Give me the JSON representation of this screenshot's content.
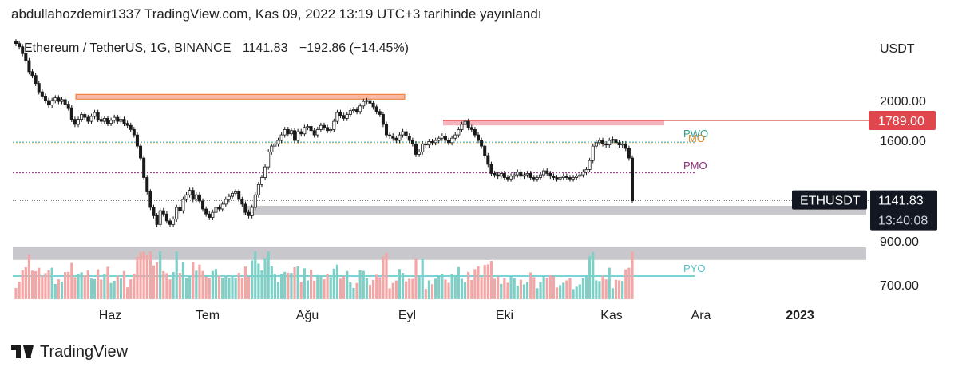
{
  "header": {
    "publish_line": "abdullahozdemir1337 TradingView.com, Kas 09, 2022 13:19 UTC+3 tarihinde yayınlandı"
  },
  "legend": {
    "symbol": "Ethereum / TetherUS, 1G, BINANCE",
    "last": "1141.83",
    "change": "−192.86 (−14.45%)"
  },
  "footer": {
    "brand": "TradingView"
  },
  "colors": {
    "up": "#1a1a1a",
    "down": "#1a1a1a",
    "vol_up": "#7ecfc6",
    "vol_down": "#f3a6a6",
    "zone_gray": "#c8c8cc",
    "zone_orange": "#f7b8a4",
    "zone_pink": "#f7b3bd",
    "red_line": "#e0474c",
    "pmo": "#8e2b7e",
    "pwo": "#2e9e86",
    "pyo": "#4fc5c8",
    "mo": "#e08a2a"
  },
  "chart_data": {
    "type": "candlestick",
    "symbol": "Ethereum / TetherUS",
    "interval": "1G",
    "exchange": "BINANCE",
    "currency": "USDT",
    "y_axis": {
      "label": "USDT",
      "ticks": [
        700,
        900,
        1600,
        2000
      ],
      "range": [
        650,
        2750
      ],
      "scale": "log"
    },
    "x_axis": {
      "ticks": [
        "Haz",
        "Tem",
        "Ağu",
        "Eyl",
        "Eki",
        "Kas",
        "Ara",
        "2023"
      ],
      "bold_ticks": [
        "2023"
      ]
    },
    "last_price": {
      "value": 1141.83,
      "label": "1141.83",
      "symbol_label": "ETHUSDT",
      "countdown": "13:40:08"
    },
    "price_marker": {
      "value": 1789,
      "label": "1789.00"
    },
    "levels": [
      {
        "name": "PMO",
        "value": 1335
      },
      {
        "name": "PWO",
        "value": 1585
      },
      {
        "name": "MO",
        "value": 1570
      },
      {
        "name": "PYO",
        "value": 733
      }
    ],
    "zones": [
      {
        "kind": "orange",
        "low": 2030,
        "high": 2070
      },
      {
        "kind": "pink",
        "low": 1740,
        "high": 1790
      },
      {
        "kind": "gray",
        "low": 1055,
        "high": 1110
      },
      {
        "kind": "gray",
        "low": 820,
        "high": 880
      }
    ],
    "ohlc_daily_closes_approx": [
      2750,
      2700,
      2600,
      2500,
      2350,
      2300,
      2200,
      2100,
      2050,
      2000,
      1950,
      2000,
      2030,
      1990,
      2010,
      1960,
      1920,
      1800,
      1750,
      1800,
      1850,
      1820,
      1780,
      1830,
      1870,
      1800,
      1780,
      1810,
      1760,
      1790,
      1820,
      1780,
      1800,
      1760,
      1740,
      1700,
      1650,
      1550,
      1450,
      1300,
      1200,
      1100,
      1050,
      1000,
      1080,
      1060,
      1020,
      1000,
      1030,
      1100,
      1080,
      1150,
      1180,
      1210,
      1150,
      1180,
      1140,
      1090,
      1060,
      1040,
      1070,
      1100,
      1090,
      1120,
      1150,
      1170,
      1190,
      1200,
      1150,
      1120,
      1070,
      1050,
      1100,
      1180,
      1250,
      1300,
      1380,
      1500,
      1550,
      1570,
      1600,
      1650,
      1700,
      1660,
      1690,
      1600,
      1680,
      1660,
      1720,
      1730,
      1690,
      1650,
      1700,
      1740,
      1720,
      1690,
      1700,
      1780,
      1870,
      1840,
      1810,
      1850,
      1890,
      1900,
      1880,
      1940,
      1990,
      2000,
      1970,
      1930,
      1880,
      1850,
      1750,
      1650,
      1640,
      1620,
      1600,
      1650,
      1680,
      1640,
      1600,
      1570,
      1480,
      1500,
      1570,
      1560,
      1590,
      1580,
      1600,
      1620,
      1640,
      1600,
      1580,
      1620,
      1650,
      1700,
      1750,
      1780,
      1720,
      1700,
      1650,
      1600,
      1550,
      1470,
      1400,
      1330,
      1320,
      1310,
      1330,
      1300,
      1290,
      1310,
      1320,
      1340,
      1310,
      1320,
      1330,
      1300,
      1290,
      1300,
      1320,
      1350,
      1330,
      1310,
      1300,
      1290,
      1300,
      1310,
      1300,
      1290,
      1300,
      1310,
      1320,
      1340,
      1360,
      1430,
      1550,
      1580,
      1600,
      1570,
      1560,
      1600,
      1610,
      1580,
      1560,
      1570,
      1530,
      1450,
      1141.83
    ]
  }
}
